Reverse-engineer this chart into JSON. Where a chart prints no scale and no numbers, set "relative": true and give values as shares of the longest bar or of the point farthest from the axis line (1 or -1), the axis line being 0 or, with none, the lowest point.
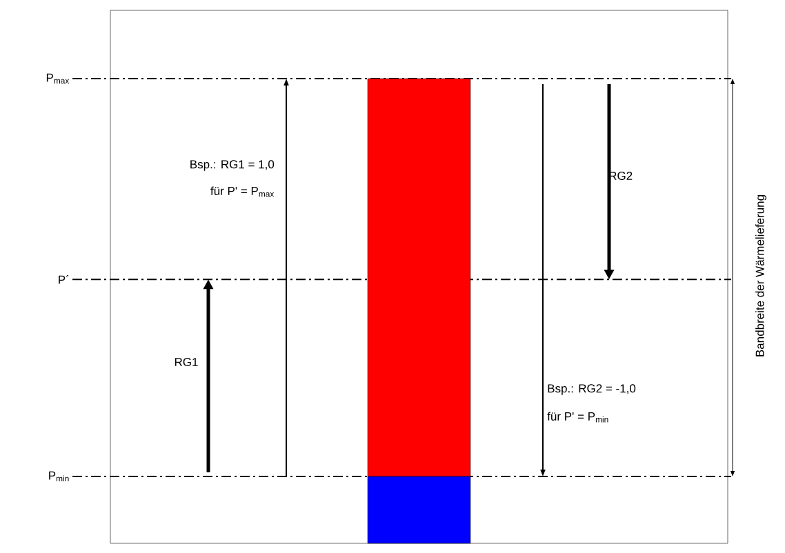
{
  "chart_data": {
    "type": "bar",
    "relative": true,
    "stacked": true,
    "categories": [
      null
    ],
    "series": [
      {
        "color": "#0000ff",
        "values": [
          0.144
        ]
      },
      {
        "color": "#ff0000",
        "values": [
          0.856
        ]
      }
    ],
    "ref_lines": [
      {
        "axis": "y",
        "value": 1.0,
        "label": "P$_{max}$",
        "line_style": "dashdot",
        "color": "#000000"
      },
      {
        "axis": "y",
        "value": 0.568,
        "label": "P´",
        "line_style": "dashdot",
        "color": "#000000"
      },
      {
        "axis": "y",
        "value": 0.144,
        "label": "P$_{min}$",
        "line_style": "dashdot",
        "color": "#000000"
      }
    ],
    "annotations": [
      "Bsp.: RG1 = 1,0",
      "für P' = P$_{max}$",
      "RG2",
      "RG1",
      "Bsp.: RG2 = -1,0",
      "für P' = P$_{min}$",
      "Bandbreite der Wärmelieferung"
    ]
  }
}
